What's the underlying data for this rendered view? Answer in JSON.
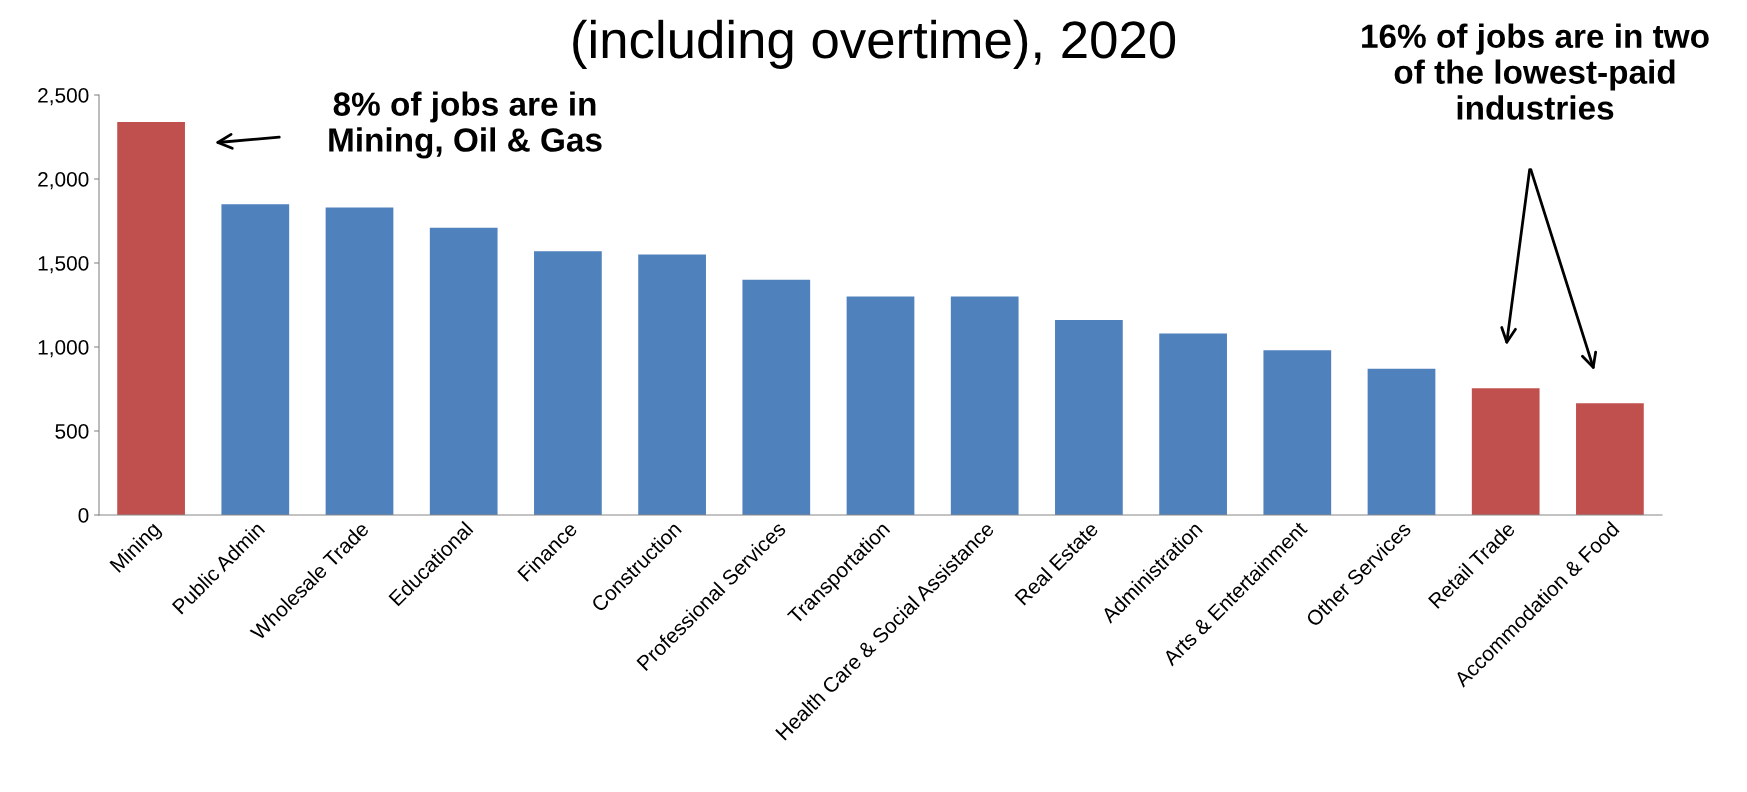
{
  "chart_data": {
    "type": "bar",
    "title": "(including overtime), 2020",
    "categories": [
      "Mining",
      "Public Admin",
      "Wholesale Trade",
      "Educational",
      "Finance",
      "Construction",
      "Professional Services",
      "Transportation",
      "Health Care & Social Assistance",
      "Real Estate",
      "Administration",
      "Arts & Entertainment",
      "Other Services",
      "Retail Trade",
      "Accommodation & Food"
    ],
    "values": [
      2340,
      1850,
      1830,
      1710,
      1570,
      1550,
      1400,
      1300,
      1300,
      1160,
      1080,
      980,
      870,
      755,
      665
    ],
    "colors": [
      "#c0504d",
      "#4f81bd",
      "#4f81bd",
      "#4f81bd",
      "#4f81bd",
      "#4f81bd",
      "#4f81bd",
      "#4f81bd",
      "#4f81bd",
      "#4f81bd",
      "#4f81bd",
      "#4f81bd",
      "#4f81bd",
      "#c0504d",
      "#c0504d"
    ],
    "ylim": [
      0,
      2500
    ],
    "yticks": [
      0,
      500,
      {
        "value": 1000,
        "label": "1,000"
      },
      {
        "value": 1500,
        "label": "1,500"
      },
      {
        "value": 2000,
        "label": "2,000"
      },
      {
        "value": 2500,
        "label": "2,500"
      }
    ],
    "grid": false,
    "legend": false,
    "annotations": [
      "8% of jobs are in\nMining, Oil & Gas",
      "16% of jobs are in two\nof the lowest-paid\nindustries"
    ]
  }
}
